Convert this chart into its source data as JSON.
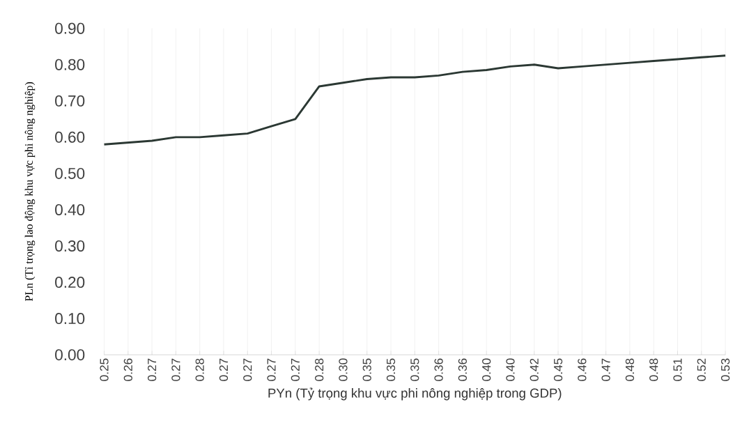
{
  "chart_data": {
    "type": "line",
    "xlabel": "PYn (Tỷ trọng khu vực phi nông nghiệp trong GDP)",
    "ylabel": "PLn (Tỉ trọng lao động khu vực phi nông nghiệp)",
    "categories": [
      "0.25",
      "0.26",
      "0.27",
      "0.27",
      "0.28",
      "0.27",
      "0.27",
      "0.27",
      "0.27",
      "0.28",
      "0.30",
      "0.35",
      "0.35",
      "0.35",
      "0.36",
      "0.36",
      "0.40",
      "0.40",
      "0.42",
      "0.45",
      "0.46",
      "0.47",
      "0.48",
      "0.48",
      "0.51",
      "0.52",
      "0.53"
    ],
    "series": [
      {
        "color": "#2b3833",
        "values": [
          0.58,
          0.585,
          0.59,
          0.6,
          0.6,
          0.605,
          0.61,
          0.63,
          0.65,
          0.74,
          0.75,
          0.76,
          0.765,
          0.765,
          0.77,
          0.78,
          0.785,
          0.795,
          0.8,
          0.79,
          0.795,
          0.8,
          0.805,
          0.81,
          0.815,
          0.82,
          0.825
        ]
      }
    ],
    "ylim": [
      0,
      0.9
    ],
    "yticks": [
      {
        "value": 0,
        "label": "0.00"
      },
      {
        "value": 0.1,
        "label": "0.10"
      },
      {
        "value": 0.2,
        "label": "0.20"
      },
      {
        "value": 0.3,
        "label": "0.30"
      },
      {
        "value": 0.4,
        "label": "0.40"
      },
      {
        "value": 0.5,
        "label": "0.50"
      },
      {
        "value": 0.6,
        "label": "0.60"
      },
      {
        "value": 0.7,
        "label": "0.70"
      },
      {
        "value": 0.8,
        "label": "0.80"
      },
      {
        "value": 0.9,
        "label": "0.90"
      }
    ],
    "grid": "x",
    "marker": "none",
    "line_style": "solid"
  }
}
